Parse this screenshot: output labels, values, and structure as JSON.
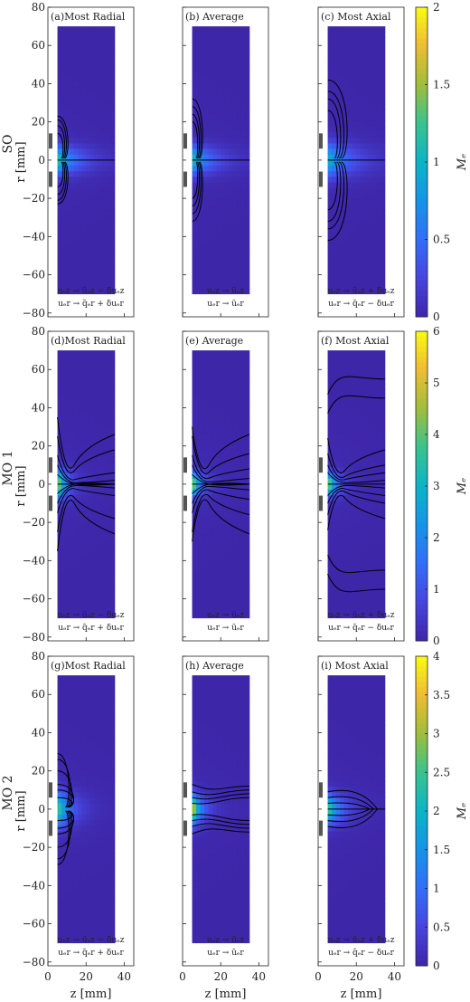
{
  "chart_data": {
    "type": "heatmap",
    "x_axis": {
      "label": "z [mm]",
      "lim": [
        0,
        45
      ],
      "ticks": [
        0,
        20,
        40
      ]
    },
    "y_axis": {
      "label": "r [mm]",
      "lim": [
        -82,
        80
      ],
      "ticks": [
        80,
        60,
        40,
        20,
        0,
        -20,
        -40,
        -60,
        -80
      ]
    },
    "data_extent": {
      "z": [
        5,
        35
      ],
      "r": [
        -70,
        70
      ]
    },
    "colormap": "parula",
    "rows": [
      {
        "row_label": "SO",
        "colorbar": {
          "label": "Mₑ",
          "min": 0,
          "max": 2,
          "ticks": [
            0,
            0.5,
            1,
            1.5,
            2
          ]
        },
        "panels": [
          {
            "tag": "(a)",
            "title": "Most Radial",
            "eq1": "uₑz → ūₑz − δuₑz",
            "eq2": "uₑr → q̄ₑr + δuₑr",
            "peak": 1.1,
            "spread": 5,
            "decay": 10,
            "contours": [
              {
                "kind": "lobe",
                "r": [
                  14,
                  18,
                  21,
                  23
                ],
                "zmax": [
                  3.5,
                  4.5,
                  5.5,
                  6.5
                ]
              },
              {
                "kind": "axis",
                "zmax": 35
              }
            ]
          },
          {
            "tag": "(b)",
            "title": "Average",
            "eq1": "uₑz → ūₑz",
            "eq2": "uₑr → ūₑr",
            "peak": 1.0,
            "spread": 5,
            "decay": 10,
            "contours": [
              {
                "kind": "lobe",
                "r": [
                  20,
                  24,
                  28,
                  32
                ],
                "zmax": [
                  3.5,
                  4.5,
                  5.5,
                  6.5
                ]
              },
              {
                "kind": "axis",
                "zmax": 35
              }
            ]
          },
          {
            "tag": "(c)",
            "title": "Most Axial",
            "eq1": "uₑz → ūₑz + δuₑz",
            "eq2": "uₑr → q̄ₑr − δuₑr",
            "peak": 0.9,
            "spread": 6,
            "decay": 12,
            "contours": [
              {
                "kind": "lobe",
                "r": [
                  26,
                  32,
                  36,
                  42
                ],
                "zmax": [
                  6,
                  8,
                  10,
                  12
                ]
              },
              {
                "kind": "axis",
                "zmax": 35
              }
            ]
          }
        ]
      },
      {
        "row_label": "MO 1",
        "colorbar": {
          "label": "Mₑ",
          "min": 0,
          "max": 6,
          "ticks": [
            0,
            1,
            2,
            3,
            4,
            5,
            6
          ]
        },
        "panels": [
          {
            "tag": "(d)",
            "title": "Most Radial",
            "eq1": "uₑz → ūₑz − δuₑz",
            "eq2": "uₑr → q̄ₑr + δuₑr",
            "peak": 5.0,
            "spread": 5,
            "decay": 4,
            "contours": [
              {
                "kind": "fan",
                "r": [
                  5,
                  10,
                  15,
                  25,
                  35
                ],
                "end": [
                  0,
                  2,
                  6,
                  18,
                  26
                ]
              },
              {
                "kind": "axis",
                "zmax": 35
              }
            ]
          },
          {
            "tag": "(e)",
            "title": "Average",
            "eq1": "uₑz → ūₑz",
            "eq2": "uₑr → ūₑr",
            "peak": 5.0,
            "spread": 4,
            "decay": 4,
            "contours": [
              {
                "kind": "fan",
                "r": [
                  5,
                  10,
                  15,
                  25,
                  30
                ],
                "end": [
                  0,
                  3,
                  8,
                  16,
                  26
                ]
              },
              {
                "kind": "axis",
                "zmax": 35
              }
            ]
          },
          {
            "tag": "(f)",
            "title": "Most Axial",
            "eq1": "uₑz → ūₑz + δuₑz",
            "eq2": "uₑr → q̄ₑr − δuₑr",
            "peak": 5.0,
            "spread": 4,
            "decay": 4,
            "contours": [
              {
                "kind": "fan",
                "r": [
                  6,
                  10,
                  16,
                  24
                ],
                "end": [
                  2,
                  6,
                  10,
                  18
                ]
              },
              {
                "kind": "outer",
                "r": [
                  45,
                  55
                ]
              },
              {
                "kind": "axis",
                "zmax": 35
              }
            ]
          }
        ]
      },
      {
        "row_label": "MO 2",
        "colorbar": {
          "label": "Mₑ",
          "min": 0,
          "max": 4,
          "ticks": [
            0,
            0.5,
            1,
            1.5,
            2,
            2.5,
            3,
            3.5,
            4
          ]
        },
        "panels": [
          {
            "tag": "(g)",
            "title": "Most Radial",
            "eq1": "uₑz → ūₑz − δuₑz",
            "eq2": "uₑr → q̄ₑr + δuₑr",
            "peak": 2.6,
            "spread": 6,
            "decay": 6,
            "contours": [
              {
                "kind": "lobe",
                "r": [
                  6,
                  10,
                  13,
                  20,
                  26,
                  29
                ],
                "zmax": [
                  9,
                  10,
                  10,
                  9,
                  8,
                  7
                ]
              }
            ]
          },
          {
            "tag": "(h)",
            "title": "Average",
            "eq1": "uₑz → ūₑz",
            "eq2": "uₑr → ūₑr",
            "peak": 3.7,
            "spread": 5,
            "decay": 4,
            "contours": [
              {
                "kind": "tube",
                "r": [
                  3,
                  6,
                  9,
                  13
                ],
                "end": [
                  6,
                  8,
                  10,
                  12
                ]
              }
            ]
          },
          {
            "tag": "(i)",
            "title": "Most Axial",
            "eq1": "uₑz → ūₑz + δuₑz",
            "eq2": "uₑr → q̄ₑr − δuₑr",
            "peak": 2.6,
            "spread": 5,
            "decay": 6,
            "contours": [
              {
                "kind": "bulb",
                "r": [
                  3,
                  6,
                  9
                ],
                "zmax": [
                  22,
                  24,
                  26
                ]
              },
              {
                "kind": "axis",
                "zmax": 35
              }
            ]
          }
        ]
      }
    ]
  }
}
